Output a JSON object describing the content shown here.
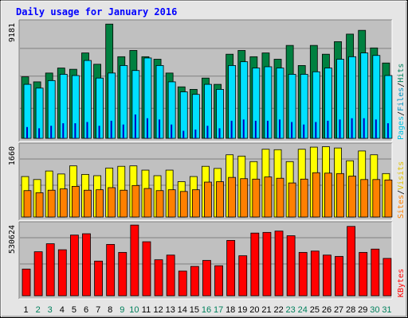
{
  "chart_data": {
    "type": "bar",
    "title": "Daily usage for January 2016",
    "categories": [
      "1",
      "2",
      "3",
      "4",
      "5",
      "6",
      "7",
      "8",
      "9",
      "10",
      "11",
      "12",
      "13",
      "14",
      "15",
      "16",
      "17",
      "18",
      "19",
      "20",
      "21",
      "22",
      "23",
      "24",
      "25",
      "26",
      "27",
      "28",
      "29",
      "30",
      "31"
    ],
    "weekend_days": [
      "2",
      "3",
      "9",
      "10",
      "16",
      "17",
      "23",
      "24",
      "30",
      "31"
    ],
    "panels": [
      {
        "name": "hits",
        "max_label": "9181",
        "ymax": 9181,
        "legend": [
          "Pages",
          "Files",
          "Hits"
        ],
        "series": [
          {
            "name": "Hits",
            "color": "#008040",
            "values": [
              4900,
              4500,
              5200,
              5600,
              5500,
              6800,
              5900,
              9100,
              6500,
              7000,
              6500,
              6300,
              5200,
              4100,
              3900,
              4800,
              4300,
              6700,
              7000,
              6500,
              6800,
              6300,
              7400,
              5800,
              7400,
              6700,
              7700,
              8300,
              8600,
              7200,
              6000
            ]
          },
          {
            "name": "Files",
            "color": "#00e0ff",
            "values": [
              4300,
              4000,
              4600,
              5100,
              5000,
              6200,
              4800,
              5200,
              5800,
              5400,
              6400,
              5800,
              4500,
              3700,
              3500,
              4300,
              3900,
              5800,
              6100,
              5600,
              5700,
              5600,
              5100,
              5100,
              5300,
              5600,
              6300,
              6500,
              6800,
              6600,
              5000
            ]
          },
          {
            "name": "Pages",
            "color": "#0000c0",
            "values": [
              900,
              800,
              1000,
              1200,
              1200,
              1300,
              1000,
              1400,
              1100,
              1900,
              1600,
              1500,
              1100,
              600,
              700,
              1000,
              800,
              1400,
              1500,
              1400,
              1400,
              1500,
              1300,
              1100,
              1300,
              1400,
              1500,
              1600,
              1600,
              1500,
              1200
            ]
          }
        ]
      },
      {
        "name": "visits",
        "max_label": "1660",
        "ymax": 1660,
        "legend": [
          "Sites",
          "Visits"
        ],
        "series": [
          {
            "name": "Visits",
            "color": "#ffff00",
            "values": [
              950,
              880,
              1080,
              1010,
              1200,
              1000,
              970,
              1150,
              1190,
              1200,
              1100,
              970,
              1100,
              830,
              950,
              1190,
              1140,
              1460,
              1430,
              1300,
              1590,
              1580,
              1300,
              1590,
              1640,
              1650,
              1620,
              1320,
              1550,
              1460,
              1020
            ]
          },
          {
            "name": "Sites",
            "color": "#ff8000",
            "values": [
              620,
              570,
              630,
              660,
              720,
              630,
              640,
              690,
              630,
              740,
              670,
              620,
              640,
              600,
              640,
              820,
              830,
              930,
              900,
              890,
              940,
              910,
              800,
              890,
              1040,
              1030,
              1020,
              960,
              880,
              880,
              870
            ]
          }
        ]
      },
      {
        "name": "kbytes",
        "max_label": "530624",
        "ymax": 530624,
        "legend": [
          "KBytes"
        ],
        "series": [
          {
            "name": "KBytes",
            "color": "#ff0000",
            "values": [
              200000,
              330000,
              390000,
              345000,
              455000,
              465000,
              260000,
              385000,
              325000,
              530000,
              405000,
              270000,
              305000,
              185000,
              220000,
              265000,
              225000,
              415000,
              300000,
              470000,
              475000,
              485000,
              450000,
              325000,
              335000,
              305000,
              295000,
              520000,
              325000,
              350000,
              280000
            ]
          }
        ]
      }
    ],
    "colors": {
      "plot_bg": "#c0c0c0",
      "page_bg": "#e5e5e5",
      "title": "#0000ff",
      "weekday_label": "#000000",
      "weekend_label": "#00805c",
      "frame_border": "#000000"
    }
  }
}
